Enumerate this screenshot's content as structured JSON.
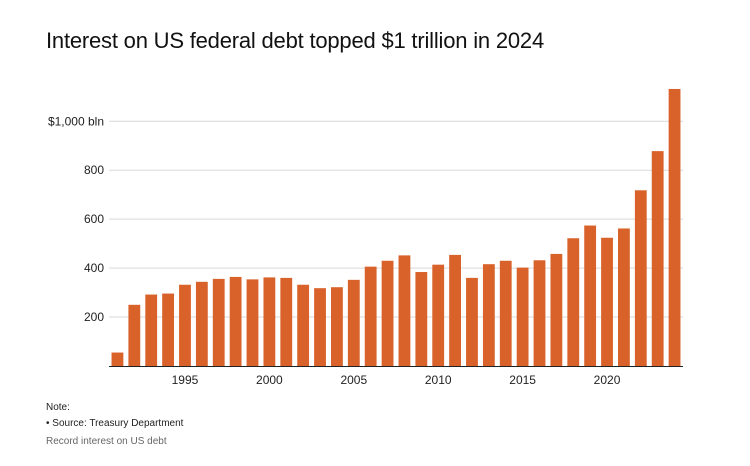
{
  "title": "Interest on US federal debt topped $1 trillion in 2024",
  "note_label": "Note:",
  "source": "• Source: Treasury Department",
  "caption": "Record interest on US debt",
  "colors": {
    "bar": "#d9622b",
    "grid": "#d9d9d9",
    "axis": "#222222"
  },
  "chart_data": {
    "type": "bar",
    "title": "Interest on US federal debt topped $1 trillion in 2024",
    "xlabel": "",
    "ylabel": "",
    "ylim": [
      0,
      1140
    ],
    "grid": true,
    "categories": [
      1991,
      1992,
      1993,
      1994,
      1995,
      1996,
      1997,
      1998,
      1999,
      2000,
      2001,
      2002,
      2003,
      2004,
      2005,
      2006,
      2007,
      2008,
      2009,
      2010,
      2011,
      2012,
      2013,
      2014,
      2015,
      2016,
      2017,
      2018,
      2019,
      2020,
      2021,
      2022,
      2023,
      2024
    ],
    "values": [
      55,
      250,
      292,
      296,
      332,
      344,
      356,
      364,
      354,
      362,
      360,
      332,
      318,
      322,
      352,
      406,
      430,
      452,
      384,
      414,
      454,
      360,
      416,
      430,
      402,
      432,
      458,
      522,
      574,
      524,
      562,
      718,
      878,
      1132
    ],
    "y_ticks": [
      200,
      400,
      600,
      800,
      1000
    ],
    "y_tick_labels": [
      "200",
      "400",
      "600",
      "800",
      "$1,000 bln"
    ],
    "x_ticks": [
      1995,
      2000,
      2005,
      2010,
      2015,
      2020
    ],
    "x_tick_labels": [
      "1995",
      "2000",
      "2005",
      "2010",
      "2015",
      "2020"
    ]
  }
}
